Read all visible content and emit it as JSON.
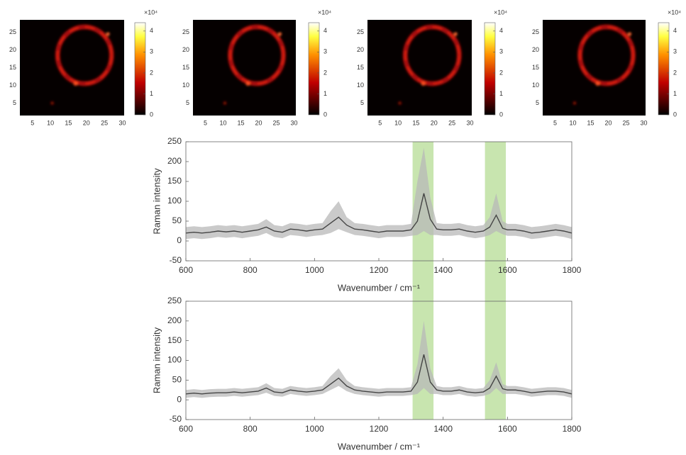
{
  "chart_data": [
    {
      "type": "heatmap",
      "xlim": [
        1.5,
        30.5
      ],
      "xticks": [
        5,
        10,
        15,
        20,
        25,
        30
      ],
      "ylim": [
        1.5,
        28.5
      ],
      "yticks": [
        5,
        10,
        15,
        20,
        25
      ],
      "clim": [
        0,
        44000
      ],
      "cticks": [
        {
          "value": 0,
          "label": "0"
        },
        {
          "value": 10000,
          "label": "1"
        },
        {
          "value": 20000,
          "label": "2"
        },
        {
          "value": 30000,
          "label": "3"
        },
        {
          "value": 40000,
          "label": "4"
        }
      ],
      "colorbar_exponent_label": "×10⁴"
    },
    {
      "type": "heatmap",
      "xlim": [
        1.5,
        30.5
      ],
      "xticks": [
        5,
        10,
        15,
        20,
        25,
        30
      ],
      "ylim": [
        1.5,
        28.5
      ],
      "yticks": [
        5,
        10,
        15,
        20,
        25
      ],
      "clim": [
        0,
        44000
      ],
      "cticks": [
        {
          "value": 0,
          "label": "0"
        },
        {
          "value": 10000,
          "label": "1"
        },
        {
          "value": 20000,
          "label": "2"
        },
        {
          "value": 30000,
          "label": "3"
        },
        {
          "value": 40000,
          "label": "4"
        }
      ],
      "colorbar_exponent_label": "×10⁴"
    },
    {
      "type": "heatmap",
      "xlim": [
        1.5,
        30.5
      ],
      "xticks": [
        5,
        10,
        15,
        20,
        25,
        30
      ],
      "ylim": [
        1.5,
        28.5
      ],
      "yticks": [
        5,
        10,
        15,
        20,
        25
      ],
      "clim": [
        0,
        44000
      ],
      "cticks": [
        {
          "value": 0,
          "label": "0"
        },
        {
          "value": 10000,
          "label": "1"
        },
        {
          "value": 20000,
          "label": "2"
        },
        {
          "value": 30000,
          "label": "3"
        },
        {
          "value": 40000,
          "label": "4"
        }
      ],
      "colorbar_exponent_label": "×10⁴"
    },
    {
      "type": "heatmap",
      "xlim": [
        1.5,
        30.5
      ],
      "xticks": [
        5,
        10,
        15,
        20,
        25,
        30
      ],
      "ylim": [
        1.5,
        28.5
      ],
      "yticks": [
        5,
        10,
        15,
        20,
        25
      ],
      "clim": [
        0,
        44000
      ],
      "cticks": [
        {
          "value": 0,
          "label": "0"
        },
        {
          "value": 10000,
          "label": "1"
        },
        {
          "value": 20000,
          "label": "2"
        },
        {
          "value": 30000,
          "label": "3"
        },
        {
          "value": 40000,
          "label": "4"
        }
      ],
      "colorbar_exponent_label": "×10⁴"
    },
    {
      "type": "line",
      "x_label": "Wavenumber / cm⁻¹",
      "y_label": "Raman intensity",
      "xlim": [
        600,
        1800
      ],
      "xticks": [
        600,
        800,
        1000,
        1200,
        1400,
        1600,
        1800
      ],
      "ylim": [
        -50,
        250
      ],
      "yticks": [
        -50,
        0,
        50,
        100,
        150,
        200,
        250
      ],
      "highlight_spans": [
        [
          1305,
          1370
        ],
        [
          1530,
          1595
        ]
      ],
      "highlight_color": "#b5dc94",
      "color": "#444444",
      "band_color": "#b8b8b8",
      "x": [
        600,
        625,
        650,
        675,
        700,
        725,
        750,
        775,
        800,
        825,
        850,
        875,
        900,
        925,
        950,
        975,
        1000,
        1025,
        1050,
        1075,
        1100,
        1125,
        1150,
        1175,
        1200,
        1225,
        1250,
        1275,
        1300,
        1320,
        1340,
        1360,
        1380,
        1400,
        1425,
        1450,
        1475,
        1500,
        1525,
        1545,
        1565,
        1585,
        1600,
        1625,
        1650,
        1675,
        1700,
        1725,
        1750,
        1775,
        1800
      ],
      "values": [
        20,
        22,
        20,
        22,
        25,
        23,
        25,
        22,
        25,
        28,
        35,
        25,
        22,
        30,
        28,
        25,
        28,
        30,
        45,
        60,
        40,
        30,
        28,
        25,
        22,
        25,
        25,
        25,
        28,
        50,
        120,
        55,
        30,
        28,
        28,
        30,
        25,
        22,
        25,
        35,
        65,
        32,
        28,
        28,
        25,
        20,
        22,
        25,
        28,
        25,
        20
      ],
      "upper": [
        35,
        37,
        35,
        37,
        40,
        38,
        40,
        37,
        40,
        43,
        55,
        40,
        37,
        45,
        43,
        40,
        43,
        45,
        75,
        100,
        60,
        45,
        43,
        40,
        37,
        40,
        40,
        40,
        43,
        150,
        235,
        110,
        45,
        43,
        43,
        45,
        40,
        37,
        40,
        60,
        120,
        50,
        43,
        43,
        40,
        35,
        37,
        40,
        43,
        40,
        35
      ],
      "lower": [
        5,
        7,
        5,
        7,
        10,
        8,
        10,
        7,
        10,
        13,
        20,
        10,
        7,
        15,
        13,
        10,
        13,
        15,
        20,
        30,
        22,
        15,
        13,
        10,
        7,
        10,
        10,
        10,
        13,
        15,
        25,
        15,
        15,
        13,
        13,
        15,
        10,
        7,
        10,
        15,
        25,
        17,
        13,
        13,
        10,
        5,
        7,
        10,
        13,
        10,
        5
      ]
    },
    {
      "type": "line",
      "x_label": "Wavenumber / cm⁻¹",
      "y_label": "Raman intensity",
      "xlim": [
        600,
        1800
      ],
      "xticks": [
        600,
        800,
        1000,
        1200,
        1400,
        1600,
        1800
      ],
      "ylim": [
        -50,
        250
      ],
      "yticks": [
        -50,
        0,
        50,
        100,
        150,
        200,
        250
      ],
      "color": "#444444",
      "band_color": "#b8b8b8",
      "x": [
        600,
        625,
        650,
        675,
        700,
        725,
        750,
        775,
        800,
        825,
        850,
        875,
        900,
        925,
        950,
        975,
        1000,
        1025,
        1050,
        1075,
        1100,
        1125,
        1150,
        1175,
        1200,
        1225,
        1250,
        1275,
        1300,
        1320,
        1340,
        1360,
        1380,
        1400,
        1425,
        1450,
        1475,
        1500,
        1525,
        1545,
        1565,
        1585,
        1600,
        1625,
        1650,
        1675,
        1700,
        1725,
        1750,
        1775,
        1800
      ],
      "values": [
        15,
        17,
        15,
        17,
        18,
        18,
        20,
        18,
        20,
        22,
        30,
        20,
        18,
        25,
        22,
        20,
        22,
        25,
        40,
        55,
        35,
        25,
        22,
        20,
        18,
        20,
        20,
        20,
        22,
        45,
        115,
        45,
        25,
        22,
        22,
        25,
        20,
        18,
        20,
        30,
        60,
        28,
        25,
        25,
        22,
        18,
        20,
        22,
        22,
        20,
        15
      ],
      "upper": [
        25,
        27,
        25,
        27,
        28,
        28,
        30,
        28,
        30,
        32,
        42,
        30,
        28,
        35,
        32,
        30,
        32,
        35,
        60,
        80,
        50,
        35,
        32,
        30,
        28,
        30,
        30,
        30,
        32,
        90,
        200,
        80,
        35,
        32,
        32,
        35,
        30,
        28,
        30,
        50,
        95,
        40,
        35,
        35,
        32,
        28,
        30,
        32,
        32,
        30,
        25
      ],
      "lower": [
        5,
        7,
        5,
        7,
        8,
        8,
        10,
        8,
        10,
        12,
        18,
        10,
        8,
        15,
        12,
        10,
        12,
        15,
        25,
        35,
        22,
        15,
        12,
        10,
        8,
        10,
        10,
        10,
        12,
        15,
        30,
        15,
        15,
        12,
        12,
        15,
        10,
        8,
        10,
        15,
        30,
        15,
        15,
        15,
        12,
        8,
        10,
        12,
        12,
        10,
        5
      ]
    }
  ]
}
